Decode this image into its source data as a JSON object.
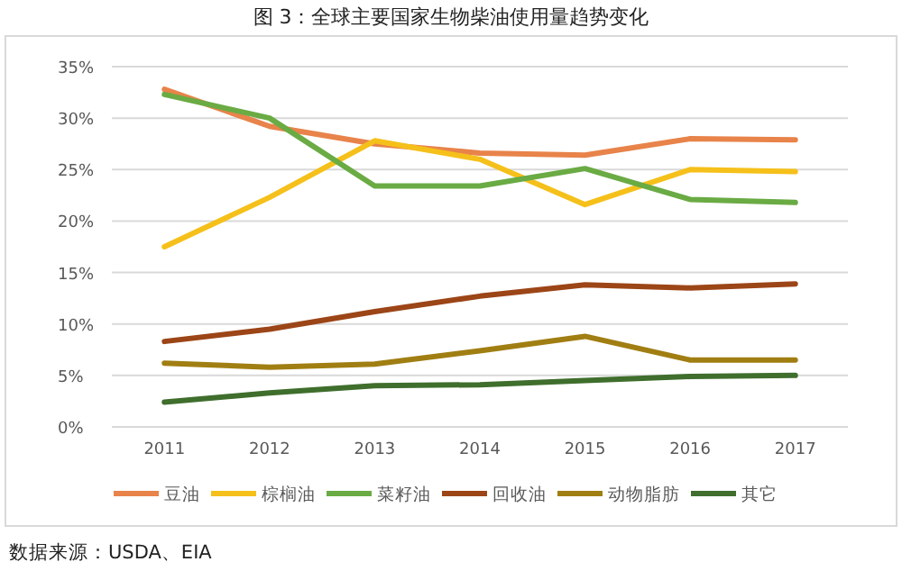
{
  "chart_data": {
    "type": "line",
    "title": "图 3：全球主要国家生物柴油使用量趋势变化",
    "categories": [
      "2011",
      "2012",
      "2013",
      "2014",
      "2015",
      "2016",
      "2017"
    ],
    "series": [
      {
        "name": "豆油",
        "color": "#e8834a",
        "values": [
          32.8,
          29.2,
          27.5,
          26.6,
          26.4,
          28.0,
          27.9
        ]
      },
      {
        "name": "棕榈油",
        "color": "#f5c01a",
        "values": [
          17.5,
          22.3,
          27.8,
          26.0,
          21.6,
          25.0,
          24.8
        ]
      },
      {
        "name": "菜籽油",
        "color": "#6aab44",
        "values": [
          32.3,
          30.0,
          23.4,
          23.4,
          25.1,
          22.1,
          21.8
        ]
      },
      {
        "name": "回收油",
        "color": "#9c4517",
        "values": [
          8.3,
          9.5,
          11.2,
          12.7,
          13.8,
          13.5,
          13.9
        ]
      },
      {
        "name": "动物脂肪",
        "color": "#a07e12",
        "values": [
          6.2,
          5.8,
          6.1,
          7.4,
          8.8,
          6.5,
          6.5
        ]
      },
      {
        "name": "其它",
        "color": "#3f6e2d",
        "values": [
          2.4,
          3.3,
          4.0,
          4.1,
          4.5,
          4.9,
          5.0
        ]
      }
    ],
    "ylim": [
      0,
      35
    ],
    "yticks": [
      {
        "value": 0,
        "label": "0%"
      },
      {
        "value": 5,
        "label": "5%"
      },
      {
        "value": 10,
        "label": "10%"
      },
      {
        "value": 15,
        "label": "15%"
      },
      {
        "value": 20,
        "label": "20%"
      },
      {
        "value": 25,
        "label": "25%"
      },
      {
        "value": 30,
        "label": "30%"
      },
      {
        "value": 35,
        "label": "35%"
      }
    ],
    "grid": "y",
    "legend": "bottom",
    "marker": "none",
    "line_style": "solid",
    "annotations": [
      "数据来源：USDA、EIA"
    ]
  }
}
